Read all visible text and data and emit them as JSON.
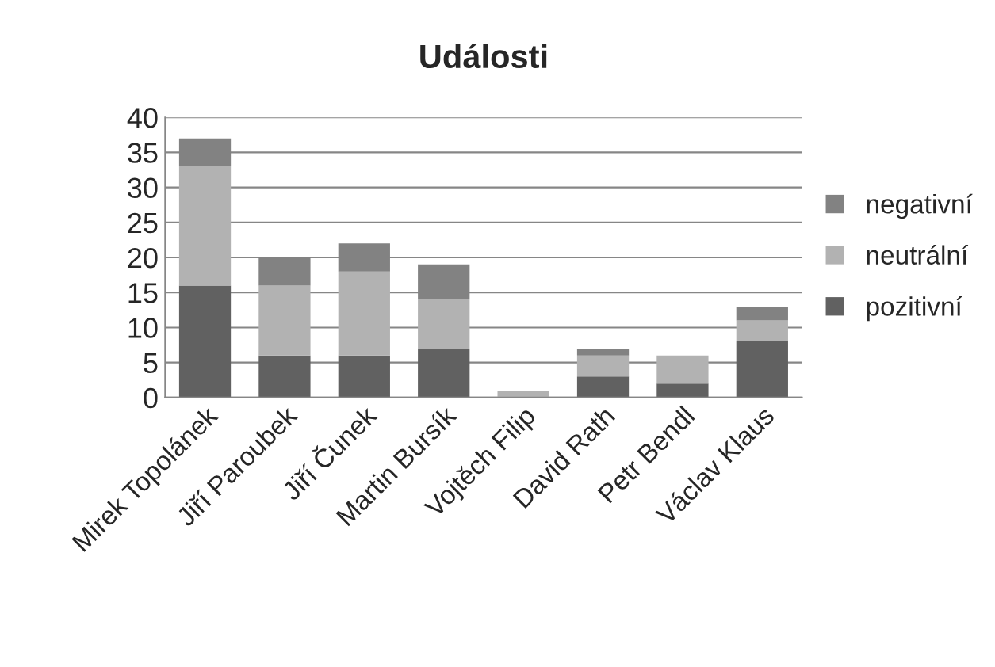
{
  "chart_data": {
    "type": "bar",
    "title": "Události",
    "stacked": true,
    "categories": [
      "Mirek Topolánek",
      "Jiří Paroubek",
      "Jiří Čunek",
      "Martin Bursík",
      "Vojtěch Filip",
      "David Rath",
      "Petr Bendl",
      "Václav Klaus"
    ],
    "series": [
      {
        "name": "pozitivní",
        "color": "#616161",
        "values": [
          16,
          6,
          6,
          7,
          0,
          3,
          2,
          8
        ]
      },
      {
        "name": "neutrální",
        "color": "#b2b2b2",
        "values": [
          17,
          10,
          12,
          7,
          1,
          3,
          4,
          3
        ]
      },
      {
        "name": "negativní",
        "color": "#828282",
        "values": [
          4,
          4,
          4,
          5,
          0,
          1,
          0,
          2
        ]
      }
    ],
    "ylim": [
      0,
      40
    ],
    "yticks": [
      0,
      5,
      10,
      15,
      20,
      25,
      30,
      35,
      40
    ],
    "grid": "y",
    "legend": "right"
  }
}
